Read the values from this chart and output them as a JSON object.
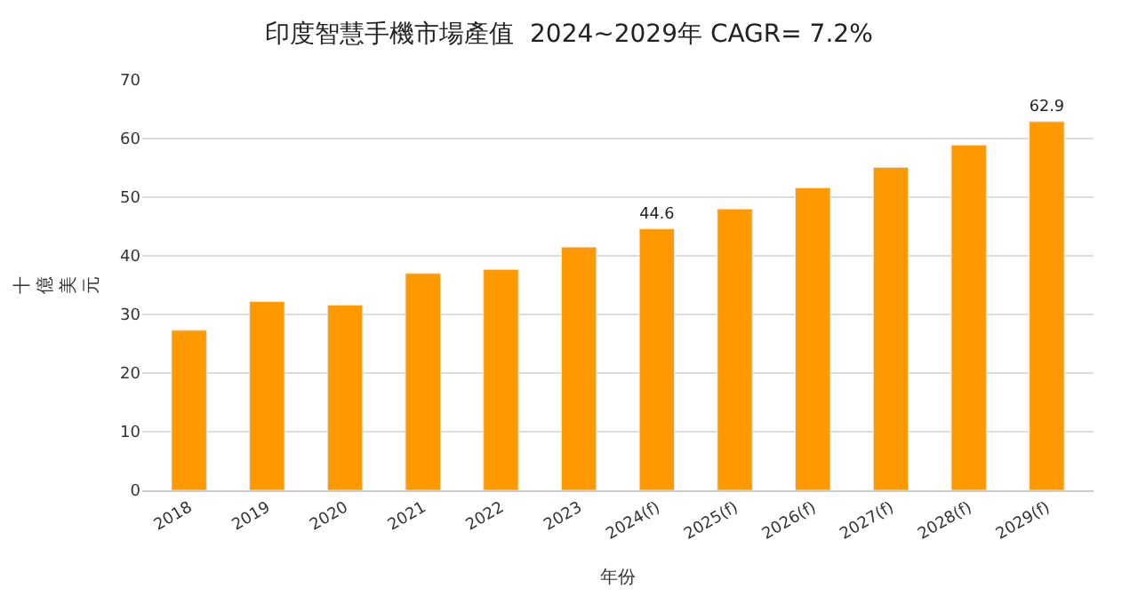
{
  "chart_data": {
    "type": "bar",
    "title": "印度智慧手機市場產值  2024~2029年 CAGR= 7.2%",
    "xlabel": "年份",
    "ylabel": "十億美元",
    "categories": [
      "2018",
      "2019",
      "2020",
      "2021",
      "2022",
      "2023",
      "2024(f)",
      "2025(f)",
      "2026(f)",
      "2027(f)",
      "2028(f)",
      "2029(f)"
    ],
    "values": [
      27.3,
      32.2,
      31.6,
      37.0,
      37.7,
      41.5,
      44.6,
      48.0,
      51.6,
      55.1,
      58.9,
      62.9
    ],
    "value_labels": [
      null,
      null,
      null,
      null,
      null,
      null,
      "44.6",
      null,
      null,
      null,
      null,
      "62.9"
    ],
    "color": "#ff9900",
    "ylim": [
      0,
      70
    ],
    "yticks": [
      0,
      10,
      20,
      30,
      40,
      50,
      60,
      70
    ],
    "grid": "y",
    "legend": false
  }
}
